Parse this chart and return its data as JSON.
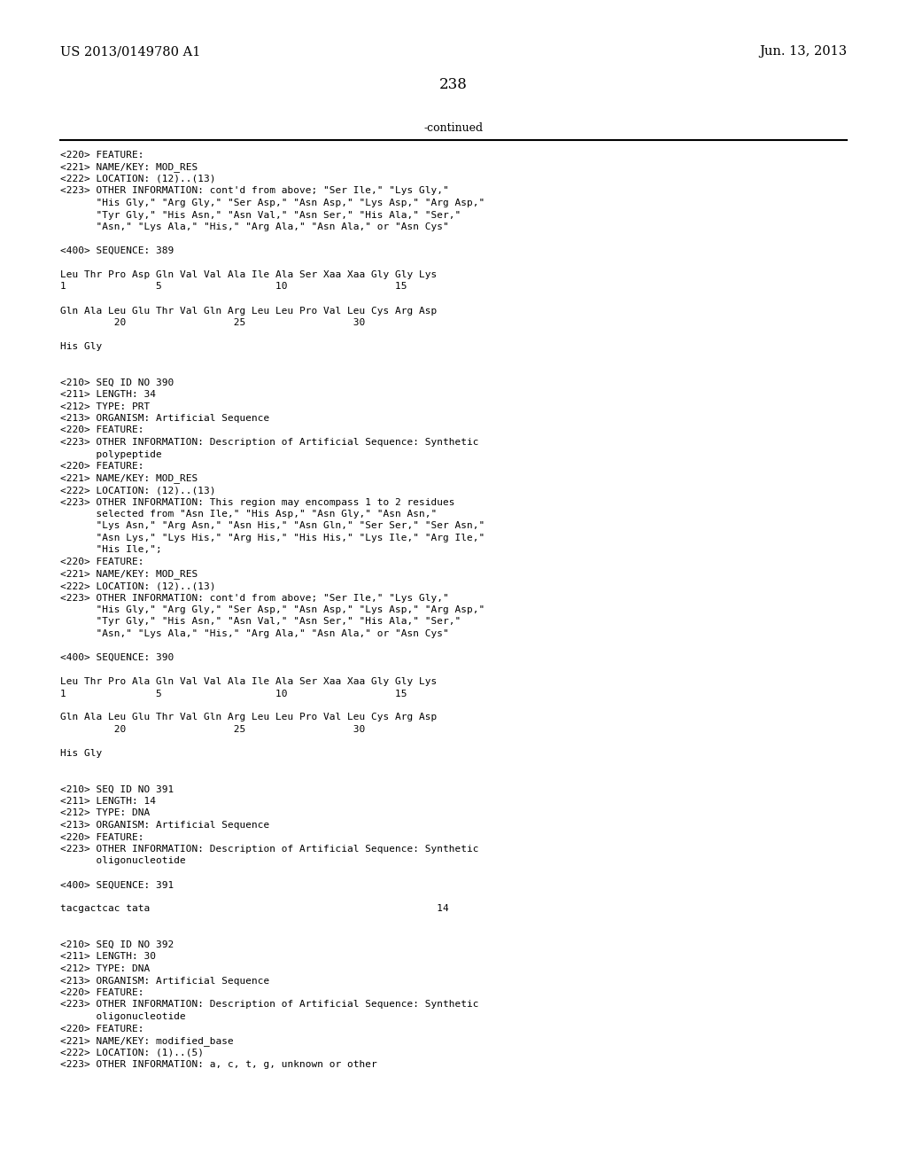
{
  "header_left": "US 2013/0149780 A1",
  "header_right": "Jun. 13, 2013",
  "page_number": "238",
  "continued_label": "-continued",
  "background_color": "#ffffff",
  "text_color": "#000000",
  "mono_size": 8.0,
  "header_size": 10.5,
  "page_num_size": 12,
  "continued_size": 9,
  "body_lines": [
    "<220> FEATURE:",
    "<221> NAME/KEY: MOD_RES",
    "<222> LOCATION: (12)..(13)",
    "<223> OTHER INFORMATION: cont'd from above; \"Ser Ile,\" \"Lys Gly,\"",
    "      \"His Gly,\" \"Arg Gly,\" \"Ser Asp,\" \"Asn Asp,\" \"Lys Asp,\" \"Arg Asp,\"",
    "      \"Tyr Gly,\" \"His Asn,\" \"Asn Val,\" \"Asn Ser,\" \"His Ala,\" \"Ser,\"",
    "      \"Asn,\" \"Lys Ala,\" \"His,\" \"Arg Ala,\" \"Asn Ala,\" or \"Asn Cys\"",
    "",
    "<400> SEQUENCE: 389",
    "",
    "Leu Thr Pro Asp Gln Val Val Ala Ile Ala Ser Xaa Xaa Gly Gly Lys",
    "1               5                   10                  15",
    "",
    "Gln Ala Leu Glu Thr Val Gln Arg Leu Leu Pro Val Leu Cys Arg Asp",
    "         20                  25                  30",
    "",
    "His Gly",
    "",
    "",
    "<210> SEQ ID NO 390",
    "<211> LENGTH: 34",
    "<212> TYPE: PRT",
    "<213> ORGANISM: Artificial Sequence",
    "<220> FEATURE:",
    "<223> OTHER INFORMATION: Description of Artificial Sequence: Synthetic",
    "      polypeptide",
    "<220> FEATURE:",
    "<221> NAME/KEY: MOD_RES",
    "<222> LOCATION: (12)..(13)",
    "<223> OTHER INFORMATION: This region may encompass 1 to 2 residues",
    "      selected from \"Asn Ile,\" \"His Asp,\" \"Asn Gly,\" \"Asn Asn,\"",
    "      \"Lys Asn,\" \"Arg Asn,\" \"Asn His,\" \"Asn Gln,\" \"Ser Ser,\" \"Ser Asn,\"",
    "      \"Asn Lys,\" \"Lys His,\" \"Arg His,\" \"His His,\" \"Lys Ile,\" \"Arg Ile,\"",
    "      \"His Ile,\";",
    "<220> FEATURE:",
    "<221> NAME/KEY: MOD_RES",
    "<222> LOCATION: (12)..(13)",
    "<223> OTHER INFORMATION: cont'd from above; \"Ser Ile,\" \"Lys Gly,\"",
    "      \"His Gly,\" \"Arg Gly,\" \"Ser Asp,\" \"Asn Asp,\" \"Lys Asp,\" \"Arg Asp,\"",
    "      \"Tyr Gly,\" \"His Asn,\" \"Asn Val,\" \"Asn Ser,\" \"His Ala,\" \"Ser,\"",
    "      \"Asn,\" \"Lys Ala,\" \"His,\" \"Arg Ala,\" \"Asn Ala,\" or \"Asn Cys\"",
    "",
    "<400> SEQUENCE: 390",
    "",
    "Leu Thr Pro Ala Gln Val Val Ala Ile Ala Ser Xaa Xaa Gly Gly Lys",
    "1               5                   10                  15",
    "",
    "Gln Ala Leu Glu Thr Val Gln Arg Leu Leu Pro Val Leu Cys Arg Asp",
    "         20                  25                  30",
    "",
    "His Gly",
    "",
    "",
    "<210> SEQ ID NO 391",
    "<211> LENGTH: 14",
    "<212> TYPE: DNA",
    "<213> ORGANISM: Artificial Sequence",
    "<220> FEATURE:",
    "<223> OTHER INFORMATION: Description of Artificial Sequence: Synthetic",
    "      oligonucleotide",
    "",
    "<400> SEQUENCE: 391",
    "",
    "tacgactcac tata                                                14",
    "",
    "",
    "<210> SEQ ID NO 392",
    "<211> LENGTH: 30",
    "<212> TYPE: DNA",
    "<213> ORGANISM: Artificial Sequence",
    "<220> FEATURE:",
    "<223> OTHER INFORMATION: Description of Artificial Sequence: Synthetic",
    "      oligonucleotide",
    "<220> FEATURE:",
    "<221> NAME/KEY: modified_base",
    "<222> LOCATION: (1)..(5)",
    "<223> OTHER INFORMATION: a, c, t, g, unknown or other"
  ]
}
